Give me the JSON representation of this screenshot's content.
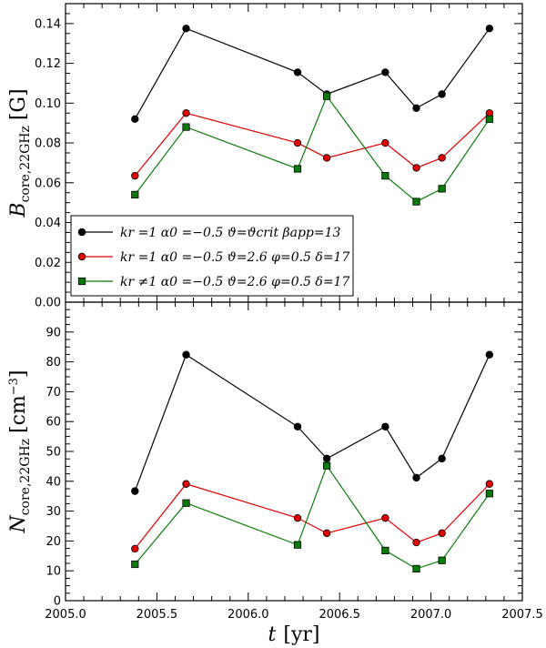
{
  "chart_data": [
    {
      "type": "line",
      "panel": "top",
      "ylabel": "B_core,22GHz [G]",
      "ylabel_main": "B",
      "ylabel_sub": "core,22GHz",
      "ylabel_unit": "[G]",
      "ylim": [
        0.0,
        0.15
      ],
      "yticks": [
        "0.00",
        "0.02",
        "0.04",
        "0.06",
        "0.08",
        "0.10",
        "0.12",
        "0.14"
      ],
      "ytick_values": [
        0.0,
        0.02,
        0.04,
        0.06,
        0.08,
        0.1,
        0.12,
        0.14
      ],
      "legend_location": "lower-left",
      "series": [
        {
          "name": "k_r=1 α_0=−0.5 ϑ=ϑ_crit β_app=13",
          "legend_text": "kr =1  α0 =−0.5  ϑ=ϑcrit  βapp=13",
          "color": "#000000",
          "marker": "circle",
          "x": [
            2005.38,
            2005.66,
            2006.27,
            2006.43,
            2006.75,
            2006.92,
            2007.06,
            2007.32
          ],
          "y": [
            0.092,
            0.1375,
            0.1155,
            0.1045,
            0.1155,
            0.0975,
            0.1045,
            0.1375
          ]
        },
        {
          "name": "k_r=1 α_0=−0.5 ϑ=2.6 φ=0.5 δ=17",
          "legend_text": "kr =1  α0 =−0.5  ϑ=2.6  φ=0.5  δ=17",
          "color": "#e00000",
          "marker": "circle",
          "x": [
            2005.38,
            2005.66,
            2006.27,
            2006.43,
            2006.75,
            2006.92,
            2007.06,
            2007.32
          ],
          "y": [
            0.0635,
            0.095,
            0.08,
            0.0725,
            0.08,
            0.0675,
            0.0725,
            0.095
          ]
        },
        {
          "name": "k_r≠1 α_0=−0.5 ϑ=2.6 φ=0.5 δ=17",
          "legend_text": "kr ≠1  α0 =−0.5  ϑ=2.6  φ=0.5  δ=17",
          "color": "#0a7a0a",
          "marker": "square",
          "x": [
            2005.38,
            2005.66,
            2006.27,
            2006.43,
            2006.75,
            2006.92,
            2007.06,
            2007.32
          ],
          "y": [
            0.054,
            0.088,
            0.067,
            0.1035,
            0.0635,
            0.0505,
            0.057,
            0.092
          ]
        }
      ]
    },
    {
      "type": "line",
      "panel": "bottom",
      "xlabel": "t [yr]",
      "xlabel_main": "t",
      "xlabel_unit": "[yr]",
      "ylabel": "N_core,22GHz [cm^-3]",
      "ylabel_main": "N",
      "ylabel_sub": "core,22GHz",
      "ylabel_unit": "[cm",
      "ylabel_exp": "−3",
      "ylabel_close": "]",
      "xlim": [
        2005.0,
        2007.5
      ],
      "xticks": [
        "2005.0",
        "2005.5",
        "2006.0",
        "2006.5",
        "2007.0",
        "2007.5"
      ],
      "xtick_values": [
        2005.0,
        2005.5,
        2006.0,
        2006.5,
        2007.0,
        2007.5
      ],
      "ylim": [
        0,
        100
      ],
      "yticks": [
        "0",
        "10",
        "20",
        "30",
        "40",
        "50",
        "60",
        "70",
        "80",
        "90"
      ],
      "ytick_values": [
        0,
        10,
        20,
        30,
        40,
        50,
        60,
        70,
        80,
        90
      ],
      "series": [
        {
          "name": "black",
          "color": "#000000",
          "marker": "circle",
          "x": [
            2005.38,
            2005.66,
            2006.27,
            2006.43,
            2006.75,
            2006.92,
            2007.06,
            2007.32
          ],
          "y": [
            36.7,
            82.4,
            58.3,
            47.6,
            58.3,
            41.2,
            47.6,
            82.4
          ]
        },
        {
          "name": "red",
          "color": "#e00000",
          "marker": "circle",
          "x": [
            2005.38,
            2005.66,
            2006.27,
            2006.43,
            2006.75,
            2006.92,
            2007.06,
            2007.32
          ],
          "y": [
            17.4,
            39.1,
            27.7,
            22.6,
            27.7,
            19.5,
            22.6,
            39.1
          ]
        },
        {
          "name": "green",
          "color": "#0a7a0a",
          "marker": "square",
          "x": [
            2005.38,
            2005.66,
            2006.27,
            2006.43,
            2006.75,
            2006.92,
            2007.06,
            2007.32
          ],
          "y": [
            12.2,
            32.7,
            18.7,
            45.2,
            16.8,
            10.7,
            13.5,
            35.9
          ]
        }
      ]
    }
  ]
}
